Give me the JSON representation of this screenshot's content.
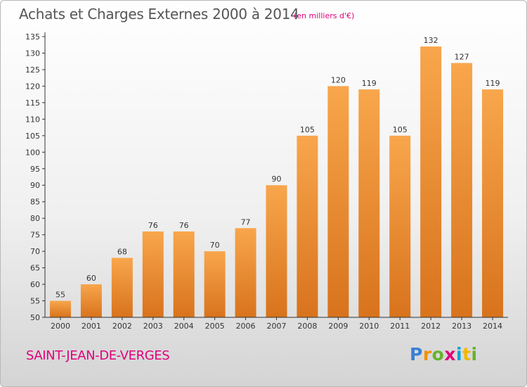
{
  "header": {
    "title": "Achats et Charges Externes 2000 à 2014",
    "unit": "(en milliers d'€)"
  },
  "footer": {
    "place": "SAINT-JEAN-DE-VERGES",
    "logo": [
      "P",
      "r",
      "o",
      "x",
      "i",
      "t",
      "i"
    ],
    "logo_colors": [
      "#3a7fd5",
      "#f29100",
      "#68b22e",
      "#e0007a",
      "#00a5d9",
      "#f2b600",
      "#68b22e"
    ]
  },
  "colors": {
    "bar_light": "#f8a64c",
    "bar_dark": "#d8731c",
    "accent": "#e0007a",
    "axis_text": "#333333"
  },
  "chart_data": {
    "type": "bar",
    "title": "Achats et Charges Externes 2000 à 2014",
    "subtitle": "(en milliers d'€)",
    "categories": [
      "2000",
      "2001",
      "2002",
      "2003",
      "2004",
      "2005",
      "2006",
      "2007",
      "2008",
      "2009",
      "2010",
      "2011",
      "2012",
      "2013",
      "2014"
    ],
    "values": [
      55,
      60,
      68,
      76,
      76,
      70,
      77,
      90,
      105,
      120,
      119,
      105,
      132,
      127,
      119
    ],
    "ylim": [
      50,
      135
    ],
    "yticks": [
      50,
      55,
      60,
      65,
      70,
      75,
      80,
      85,
      90,
      95,
      100,
      105,
      110,
      115,
      120,
      125,
      130,
      135
    ],
    "grid": false,
    "legend": "none"
  }
}
